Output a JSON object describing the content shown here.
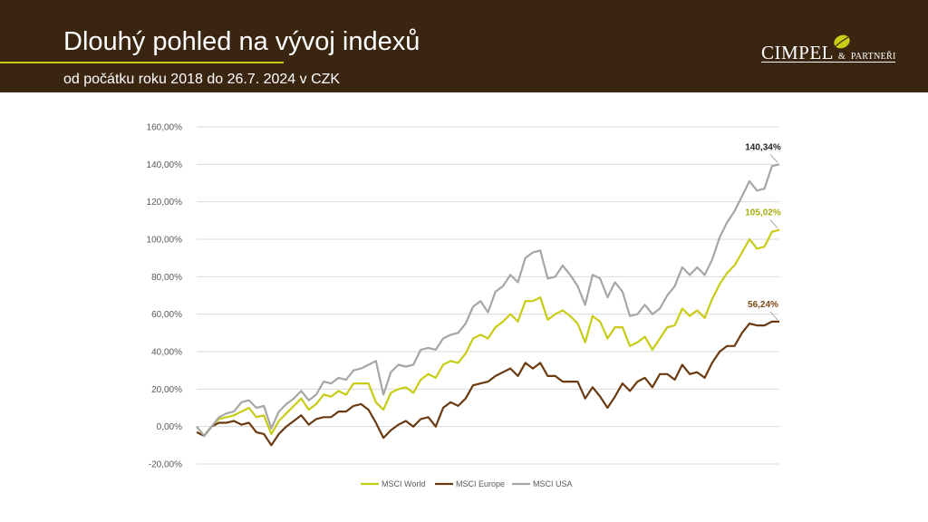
{
  "header": {
    "title": "Dlouhý pohled na vývoj indexů",
    "subtitle": "od počátku roku 2018 do 26.7. 2024 v CZK",
    "logo_main": "CIMPEL",
    "logo_amp": "&",
    "logo_partner": "PARTNEŘI"
  },
  "colors": {
    "header_bg": "#3a2511",
    "accent": "#c8c816",
    "world": "#c8cc14",
    "europe": "#6b3a10",
    "usa": "#a6a6a6",
    "grid": "#d9d9d9"
  },
  "chart_data": {
    "type": "line",
    "ylim": [
      -20,
      160
    ],
    "yticks": [
      "-20,00%",
      "0,00%",
      "20,00%",
      "40,00%",
      "60,00%",
      "80,00%",
      "100,00%",
      "120,00%",
      "140,00%",
      "160,00%"
    ],
    "ytick_values": [
      -20,
      0,
      20,
      40,
      60,
      80,
      100,
      120,
      140,
      160
    ],
    "grid": true,
    "legend_position": "bottom",
    "series": [
      {
        "name": "MSCI World",
        "color": "#c8cc14",
        "end_label": "105,02%",
        "values": [
          0,
          -5,
          0,
          4,
          5,
          6,
          8,
          10,
          5,
          6,
          -4,
          3,
          7,
          11,
          15,
          9,
          12,
          17,
          16,
          19,
          17,
          23,
          23,
          23,
          13,
          9,
          18,
          20,
          21,
          18,
          25,
          28,
          26,
          33,
          35,
          34,
          39,
          47,
          49,
          47,
          53,
          56,
          60,
          56,
          67,
          67,
          69,
          57,
          60,
          62,
          59,
          55,
          45,
          59,
          56,
          47,
          53,
          53,
          43,
          45,
          48,
          41,
          47,
          53,
          54,
          63,
          59,
          62,
          58,
          68,
          76,
          82,
          86,
          93,
          100,
          95,
          96,
          104,
          105
        ]
      },
      {
        "name": "MSCI Europe",
        "color": "#6b3a10",
        "end_label": "56,24%",
        "values": [
          -3,
          -5,
          0,
          2,
          2,
          3,
          1,
          2,
          -3,
          -4,
          -10,
          -4,
          0,
          3,
          6,
          1,
          4,
          5,
          5,
          8,
          8,
          11,
          12,
          9,
          2,
          -6,
          -2,
          1,
          3,
          0,
          4,
          5,
          0,
          10,
          13,
          11,
          15,
          22,
          23,
          24,
          27,
          29,
          31,
          27,
          34,
          31,
          34,
          27,
          27,
          24,
          24,
          24,
          15,
          21,
          16,
          10,
          16,
          23,
          19,
          24,
          26,
          21,
          28,
          28,
          25,
          33,
          28,
          29,
          26,
          34,
          40,
          43,
          43,
          50,
          55,
          54,
          54,
          56,
          56
        ]
      },
      {
        "name": "MSCI USA",
        "color": "#a6a6a6",
        "end_label": "140,34%",
        "values": [
          0,
          -5,
          0,
          5,
          7,
          8,
          13,
          14,
          10,
          11,
          -1,
          8,
          12,
          15,
          19,
          14,
          17,
          24,
          23,
          26,
          25,
          30,
          31,
          33,
          35,
          17,
          29,
          33,
          32,
          33,
          41,
          42,
          41,
          47,
          49,
          50,
          55,
          64,
          67,
          61,
          72,
          75,
          81,
          77,
          90,
          93,
          94,
          79,
          80,
          86,
          81,
          75,
          65,
          81,
          79,
          69,
          77,
          72,
          59,
          60,
          65,
          60,
          63,
          70,
          75,
          85,
          81,
          85,
          81,
          89,
          101,
          109,
          115,
          123,
          131,
          126,
          127,
          139,
          140
        ]
      }
    ]
  }
}
